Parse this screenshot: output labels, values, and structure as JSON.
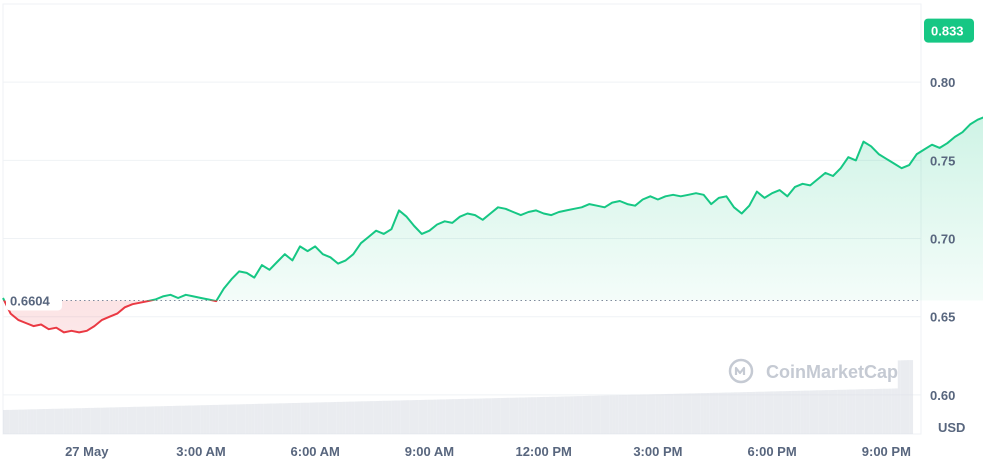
{
  "chart_data": {
    "type": "area",
    "watermark": "CoinMarketCap",
    "unit": "USD",
    "y_ticks": [
      "0.60",
      "0.65",
      "0.70",
      "0.75",
      "0.80"
    ],
    "y_tick_values": [
      0.6,
      0.65,
      0.7,
      0.75,
      0.8
    ],
    "x_ticks": [
      "27 May",
      "3:00 AM",
      "6:00 AM",
      "9:00 AM",
      "12:00 PM",
      "3:00 PM",
      "6:00 PM",
      "9:00 PM"
    ],
    "x_tick_hours": [
      0,
      3,
      6,
      9,
      12,
      15,
      18,
      21
    ],
    "ylim": [
      0.575,
      0.85
    ],
    "xlim_hours": [
      -2.2,
      21.7
    ],
    "open_price": 0.6604,
    "open_label": "0.6604",
    "current_price_label": "0.833",
    "colors": {
      "up": "#16c784",
      "down": "#ea3943",
      "grid": "#eff2f5",
      "axis_text": "#58667e"
    },
    "series": [
      {
        "values": [
          [
            -2.2,
            0.662
          ],
          [
            -2.0,
            0.652
          ],
          [
            -1.8,
            0.648
          ],
          [
            -1.6,
            0.646
          ],
          [
            -1.4,
            0.644
          ],
          [
            -1.2,
            0.645
          ],
          [
            -1.0,
            0.642
          ],
          [
            -0.8,
            0.643
          ],
          [
            -0.6,
            0.64
          ],
          [
            -0.4,
            0.641
          ],
          [
            -0.2,
            0.64
          ],
          [
            0.0,
            0.641
          ],
          [
            0.2,
            0.644
          ],
          [
            0.4,
            0.648
          ],
          [
            0.6,
            0.65
          ],
          [
            0.8,
            0.652
          ],
          [
            1.0,
            0.656
          ],
          [
            1.2,
            0.658
          ],
          [
            1.4,
            0.659
          ],
          [
            1.6,
            0.66
          ],
          [
            1.8,
            0.661
          ],
          [
            2.0,
            0.663
          ],
          [
            2.2,
            0.664
          ],
          [
            2.4,
            0.662
          ],
          [
            2.6,
            0.664
          ],
          [
            2.8,
            0.663
          ],
          [
            3.0,
            0.662
          ],
          [
            3.2,
            0.661
          ],
          [
            3.4,
            0.66
          ],
          [
            3.6,
            0.668
          ],
          [
            3.8,
            0.674
          ],
          [
            4.0,
            0.679
          ],
          [
            4.2,
            0.678
          ],
          [
            4.4,
            0.675
          ],
          [
            4.6,
            0.683
          ],
          [
            4.8,
            0.68
          ],
          [
            5.0,
            0.685
          ],
          [
            5.2,
            0.69
          ],
          [
            5.4,
            0.686
          ],
          [
            5.6,
            0.695
          ],
          [
            5.8,
            0.692
          ],
          [
            6.0,
            0.695
          ],
          [
            6.2,
            0.69
          ],
          [
            6.4,
            0.688
          ],
          [
            6.6,
            0.684
          ],
          [
            6.8,
            0.686
          ],
          [
            7.0,
            0.69
          ],
          [
            7.2,
            0.697
          ],
          [
            7.4,
            0.701
          ],
          [
            7.6,
            0.705
          ],
          [
            7.8,
            0.703
          ],
          [
            8.0,
            0.706
          ],
          [
            8.2,
            0.718
          ],
          [
            8.4,
            0.714
          ],
          [
            8.6,
            0.708
          ],
          [
            8.8,
            0.703
          ],
          [
            9.0,
            0.705
          ],
          [
            9.2,
            0.709
          ],
          [
            9.4,
            0.711
          ],
          [
            9.6,
            0.71
          ],
          [
            9.8,
            0.714
          ],
          [
            10.0,
            0.716
          ],
          [
            10.2,
            0.715
          ],
          [
            10.4,
            0.712
          ],
          [
            10.6,
            0.716
          ],
          [
            10.8,
            0.72
          ],
          [
            11.0,
            0.719
          ],
          [
            11.2,
            0.717
          ],
          [
            11.4,
            0.715
          ],
          [
            11.6,
            0.717
          ],
          [
            11.8,
            0.718
          ],
          [
            12.0,
            0.716
          ],
          [
            12.2,
            0.715
          ],
          [
            12.4,
            0.717
          ],
          [
            12.6,
            0.718
          ],
          [
            12.8,
            0.719
          ],
          [
            13.0,
            0.72
          ],
          [
            13.2,
            0.722
          ],
          [
            13.4,
            0.721
          ],
          [
            13.6,
            0.72
          ],
          [
            13.8,
            0.723
          ],
          [
            14.0,
            0.724
          ],
          [
            14.2,
            0.722
          ],
          [
            14.4,
            0.721
          ],
          [
            14.6,
            0.725
          ],
          [
            14.8,
            0.727
          ],
          [
            15.0,
            0.725
          ],
          [
            15.2,
            0.727
          ],
          [
            15.4,
            0.728
          ],
          [
            15.6,
            0.727
          ],
          [
            15.8,
            0.728
          ],
          [
            16.0,
            0.729
          ],
          [
            16.2,
            0.728
          ],
          [
            16.4,
            0.722
          ],
          [
            16.6,
            0.726
          ],
          [
            16.8,
            0.727
          ],
          [
            17.0,
            0.72
          ],
          [
            17.2,
            0.716
          ],
          [
            17.4,
            0.721
          ],
          [
            17.6,
            0.73
          ],
          [
            17.8,
            0.726
          ],
          [
            18.0,
            0.729
          ],
          [
            18.2,
            0.731
          ],
          [
            18.4,
            0.727
          ],
          [
            18.6,
            0.733
          ],
          [
            18.8,
            0.735
          ],
          [
            19.0,
            0.734
          ],
          [
            19.2,
            0.738
          ],
          [
            19.4,
            0.742
          ],
          [
            19.6,
            0.74
          ],
          [
            19.8,
            0.745
          ],
          [
            20.0,
            0.752
          ],
          [
            20.2,
            0.75
          ],
          [
            20.4,
            0.762
          ],
          [
            20.6,
            0.759
          ],
          [
            20.8,
            0.754
          ],
          [
            21.0,
            0.751
          ],
          [
            21.2,
            0.748
          ],
          [
            21.4,
            0.745
          ],
          [
            21.6,
            0.747
          ],
          [
            21.8,
            0.754
          ],
          [
            22.0,
            0.757
          ],
          [
            22.2,
            0.76
          ],
          [
            22.4,
            0.758
          ],
          [
            22.6,
            0.761
          ],
          [
            22.8,
            0.765
          ],
          [
            23.0,
            0.768
          ],
          [
            23.2,
            0.773
          ],
          [
            23.4,
            0.776
          ],
          [
            23.6,
            0.778
          ],
          [
            23.8,
            0.775
          ],
          [
            24.0,
            0.781
          ],
          [
            24.2,
            0.786
          ],
          [
            24.4,
            0.79
          ],
          [
            24.6,
            0.795
          ],
          [
            24.8,
            0.791
          ],
          [
            25.0,
            0.793
          ],
          [
            25.2,
            0.79
          ],
          [
            25.4,
            0.791
          ],
          [
            25.6,
            0.789
          ],
          [
            25.8,
            0.795
          ],
          [
            26.0,
            0.833
          ]
        ]
      }
    ]
  }
}
